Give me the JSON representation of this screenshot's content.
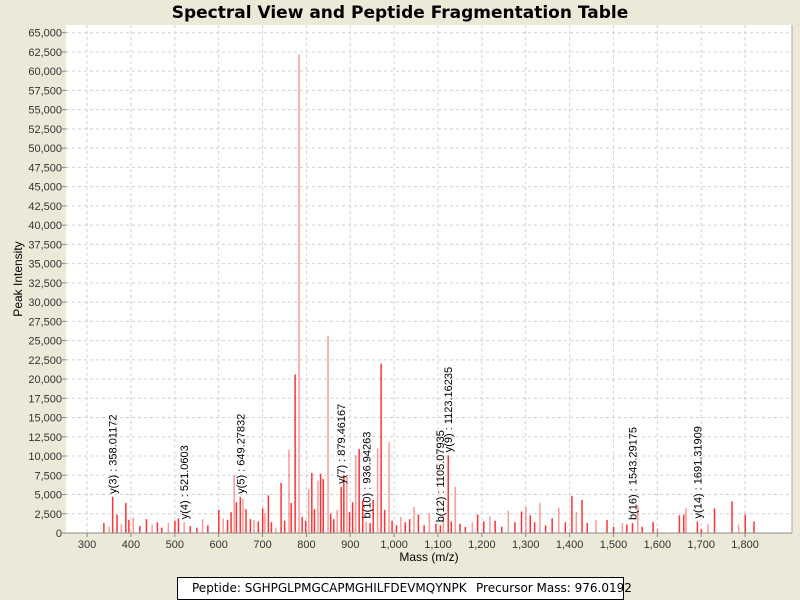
{
  "chart_data": {
    "type": "bar",
    "title": "Spectral View and Peptide Fragmentation Table",
    "xlabel": "Mass (m/z)",
    "ylabel": "Peak Intensity",
    "xlim": [
      252,
      1907
    ],
    "ylim": [
      0,
      66000
    ],
    "xticks": [
      300,
      400,
      500,
      600,
      700,
      800,
      900,
      1000,
      1100,
      1200,
      1300,
      1400,
      1500,
      1600,
      1700,
      1800
    ],
    "xtick_labels": [
      "300",
      "400",
      "500",
      "600",
      "700",
      "800",
      "900",
      "1,000",
      "1,100",
      "1,200",
      "1,300",
      "1,400",
      "1,500",
      "1,600",
      "1,700",
      "1,800"
    ],
    "yticks": [
      0,
      2500,
      5000,
      7500,
      10000,
      12500,
      15000,
      17500,
      20000,
      22500,
      25000,
      27500,
      30000,
      32500,
      35000,
      37500,
      40000,
      42500,
      45000,
      47500,
      50000,
      52500,
      55000,
      57500,
      60000,
      62500,
      65000
    ],
    "ytick_labels": [
      "0",
      "2,500",
      "5,000",
      "7,500",
      "10,000",
      "12,500",
      "15,000",
      "17,500",
      "20,000",
      "22,500",
      "25,000",
      "27,500",
      "30,000",
      "32,500",
      "35,000",
      "37,500",
      "40,000",
      "42,500",
      "45,000",
      "47,500",
      "50,000",
      "52,500",
      "55,000",
      "57,500",
      "60,000",
      "62,500",
      "65,000"
    ],
    "grid": true,
    "peak_color": "#ff0000",
    "peaks": [
      [
        338,
        1300
      ],
      [
        350,
        800
      ],
      [
        358,
        4700
      ],
      [
        368,
        2400
      ],
      [
        378,
        1200
      ],
      [
        388,
        3900
      ],
      [
        395,
        1700
      ],
      [
        405,
        2000
      ],
      [
        420,
        900
      ],
      [
        435,
        1800
      ],
      [
        448,
        1100
      ],
      [
        460,
        1400
      ],
      [
        470,
        700
      ],
      [
        485,
        1300
      ],
      [
        500,
        1600
      ],
      [
        508,
        1900
      ],
      [
        521,
        1400
      ],
      [
        535,
        900
      ],
      [
        550,
        700
      ],
      [
        563,
        1800
      ],
      [
        575,
        1000
      ],
      [
        600,
        3000
      ],
      [
        610,
        1900
      ],
      [
        620,
        1700
      ],
      [
        628,
        2700
      ],
      [
        635,
        7500
      ],
      [
        640,
        4000
      ],
      [
        649,
        4700
      ],
      [
        655,
        4400
      ],
      [
        662,
        3100
      ],
      [
        672,
        1800
      ],
      [
        680,
        1700
      ],
      [
        690,
        1500
      ],
      [
        700,
        3200
      ],
      [
        705,
        2500
      ],
      [
        713,
        4900
      ],
      [
        720,
        1400
      ],
      [
        730,
        700
      ],
      [
        742,
        6500
      ],
      [
        750,
        1600
      ],
      [
        760,
        10800
      ],
      [
        765,
        3900
      ],
      [
        774,
        20600
      ],
      [
        783,
        62200
      ],
      [
        790,
        2100
      ],
      [
        798,
        1600
      ],
      [
        805,
        5700
      ],
      [
        812,
        7800
      ],
      [
        818,
        3100
      ],
      [
        826,
        6800
      ],
      [
        832,
        7700
      ],
      [
        838,
        7000
      ],
      [
        849,
        25600
      ],
      [
        855,
        2500
      ],
      [
        862,
        1800
      ],
      [
        870,
        3000
      ],
      [
        879,
        6000
      ],
      [
        885,
        7500
      ],
      [
        892,
        7300
      ],
      [
        898,
        2700
      ],
      [
        905,
        4000
      ],
      [
        912,
        10100
      ],
      [
        920,
        10900
      ],
      [
        928,
        4200
      ],
      [
        936,
        1500
      ],
      [
        945,
        1300
      ],
      [
        952,
        4300
      ],
      [
        962,
        11000
      ],
      [
        970,
        22000
      ],
      [
        978,
        3000
      ],
      [
        988,
        11800
      ],
      [
        995,
        1600
      ],
      [
        1005,
        1000
      ],
      [
        1015,
        2100
      ],
      [
        1025,
        1400
      ],
      [
        1035,
        1800
      ],
      [
        1045,
        3400
      ],
      [
        1055,
        2400
      ],
      [
        1068,
        1000
      ],
      [
        1080,
        2600
      ],
      [
        1095,
        1200
      ],
      [
        1105,
        1000
      ],
      [
        1112,
        2200
      ],
      [
        1123,
        10100
      ],
      [
        1130,
        1500
      ],
      [
        1139,
        6000
      ],
      [
        1150,
        1200
      ],
      [
        1162,
        800
      ],
      [
        1178,
        1400
      ],
      [
        1190,
        2400
      ],
      [
        1204,
        1500
      ],
      [
        1218,
        2200
      ],
      [
        1230,
        1600
      ],
      [
        1245,
        800
      ],
      [
        1260,
        2900
      ],
      [
        1275,
        1400
      ],
      [
        1290,
        2800
      ],
      [
        1300,
        3400
      ],
      [
        1310,
        2300
      ],
      [
        1320,
        1400
      ],
      [
        1332,
        3900
      ],
      [
        1345,
        1000
      ],
      [
        1360,
        1900
      ],
      [
        1375,
        3300
      ],
      [
        1390,
        1400
      ],
      [
        1405,
        4800
      ],
      [
        1415,
        2700
      ],
      [
        1428,
        4300
      ],
      [
        1440,
        1300
      ],
      [
        1460,
        1700
      ],
      [
        1485,
        1700
      ],
      [
        1500,
        800
      ],
      [
        1520,
        1300
      ],
      [
        1530,
        1100
      ],
      [
        1543,
        1300
      ],
      [
        1555,
        3600
      ],
      [
        1565,
        800
      ],
      [
        1590,
        1400
      ],
      [
        1600,
        600
      ],
      [
        1650,
        2300
      ],
      [
        1660,
        2400
      ],
      [
        1665,
        3200
      ],
      [
        1691,
        1500
      ],
      [
        1700,
        500
      ],
      [
        1715,
        1200
      ],
      [
        1730,
        3200
      ],
      [
        1770,
        4100
      ],
      [
        1785,
        1100
      ],
      [
        1800,
        2400
      ],
      [
        1820,
        1500
      ]
    ],
    "annotations": [
      {
        "label": "y(3) : 358.01172",
        "mass": 358.01172,
        "intensity": 4700
      },
      {
        "label": "y(4) : 521.0603",
        "mass": 521.0603,
        "intensity": 1400
      },
      {
        "label": "y(5) : 649.27832",
        "mass": 649.27832,
        "intensity": 4700
      },
      {
        "label": "y(7) : 879.46167",
        "mass": 879.46167,
        "intensity": 6000
      },
      {
        "label": "b(10) : 936.94263",
        "mass": 936.94263,
        "intensity": 1500
      },
      {
        "label": "b(12) : 1105.07935",
        "mass": 1105.07935,
        "intensity": 1000
      },
      {
        "label": "y(9) : 1123.16235",
        "mass": 1123.16235,
        "intensity": 10100
      },
      {
        "label": "b(16) : 1543.29175",
        "mass": 1543.29175,
        "intensity": 1300
      },
      {
        "label": "y(14) : 1691.31909",
        "mass": 1691.31909,
        "intensity": 1500
      }
    ]
  },
  "legend": {
    "peptide": "Peptide: SGHPGLPMGCAPMGHILFDEVMQYNPK",
    "precursor": "Precursor Mass: 976.0192"
  }
}
